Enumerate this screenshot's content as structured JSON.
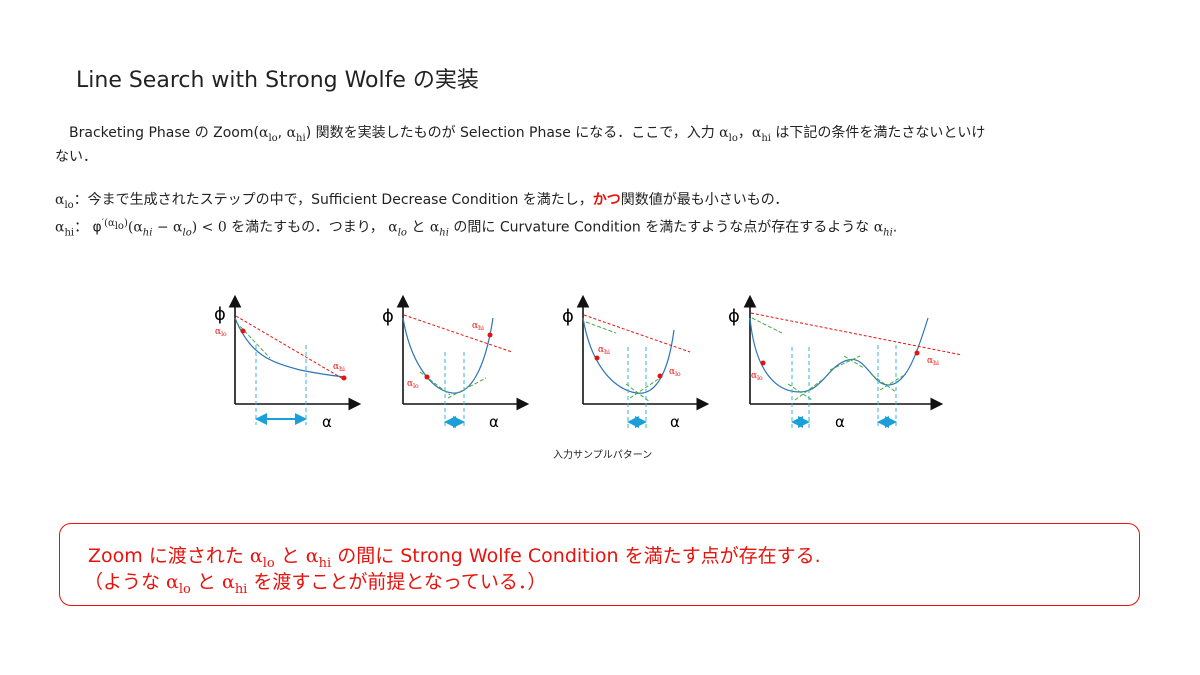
{
  "title": "Line Search with Strong Wolfe の実装",
  "intro": {
    "line1_a": "　Bracketing Phase の Zoom(",
    "alo": "α",
    "lo": "lo",
    "comma": ",  ",
    "ahi": "α",
    "hi": "hi",
    "line1_b": ") 関数を実装したものが Selection Phase になる．ここで，入力 ",
    "line1_c": "，",
    "line1_d": " は下記の条件を満たさないといけ",
    "line2": "ない．"
  },
  "def_lo": {
    "a": "α",
    "sub": "lo",
    "text1": "：今まで生成されたステップの中で，Sufficient Decrease Condition を満たし，",
    "emph": "かつ",
    "text2": "関数値が最も小さいもの．"
  },
  "def_hi": {
    "a": "α",
    "sub": "hi",
    "text1": "： φ",
    "sup": "′(α",
    "sup_sub": "lo",
    "sup_end": ")",
    "expr": "(α",
    "e_hi": "hi",
    "minus": " − α",
    "e_lo": "lo",
    "expr_end": ") < 0",
    "text2": " を満たすもの．つまり，  ",
    "t_lo": "lo",
    "text3": " と ",
    "t_hi": "hi",
    "text4": " の間に Curvature Condition を満たすような点が存在するような ",
    "t_hi2": "hi",
    "text5": "."
  },
  "figures": {
    "axis_phi": "ϕ",
    "axis_alpha": "α",
    "label_alo": "α",
    "label_ahi": "α",
    "sub_lo": "lo",
    "sub_hi": "hi",
    "colors": {
      "curve": "#2e75b6",
      "secant": "#e8120c",
      "tangent": "#4aa84a",
      "guide": "#3bb0e0",
      "point": "#e8120c"
    }
  },
  "caption": "入力サンプルパターン",
  "box": {
    "line1_a": "Zoom に渡された ",
    "alo": "α",
    "lo": "lo",
    "and": " と ",
    "ahi": "α",
    "hi": "hi",
    "line1_b": " の間に Strong Wolfe Condition を満たす点が存在する.",
    "line2_a": "（ような ",
    "line2_b": " を渡すことが前提となっている．）"
  }
}
